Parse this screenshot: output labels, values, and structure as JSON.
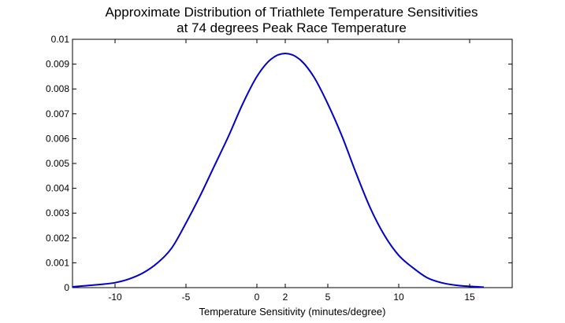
{
  "chart_data": {
    "type": "line",
    "title_lines": [
      "Approximate Distribution of Triathlete Temperature Sensitivities",
      "at 74 degrees Peak Race Temperature"
    ],
    "xlabel": "Temperature Sensitivity (minutes/degree)",
    "ylabel": "",
    "xlim": [
      -13,
      18
    ],
    "ylim": [
      0,
      0.01
    ],
    "x_ticks": [
      -10,
      -5,
      0,
      2,
      5,
      10,
      15
    ],
    "y_ticks": [
      "0",
      "0.001",
      "0.002",
      "0.003",
      "0.004",
      "0.005",
      "0.006",
      "0.007",
      "0.008",
      "0.009",
      "0.01"
    ],
    "grid": false,
    "series_color": "#0000cc",
    "series": [
      {
        "x": [
          -13,
          -12,
          -11,
          -10,
          -9,
          -8,
          -7,
          -6,
          -5,
          -4,
          -3,
          -2,
          -1,
          0,
          1,
          2,
          3,
          4,
          5,
          6,
          7,
          8,
          9,
          10,
          11,
          12,
          13,
          14,
          15,
          16
        ],
        "y": [
          3e-05,
          8e-05,
          0.00013,
          0.0002,
          0.00035,
          0.0006,
          0.001,
          0.0016,
          0.0026,
          0.0037,
          0.0049,
          0.0061,
          0.0074,
          0.0085,
          0.0092,
          0.00943,
          0.0092,
          0.0085,
          0.0074,
          0.0061,
          0.0046,
          0.0032,
          0.0021,
          0.0013,
          0.0008,
          0.0004,
          0.0002,
          0.0001,
          5e-05,
          2e-05
        ]
      }
    ]
  }
}
